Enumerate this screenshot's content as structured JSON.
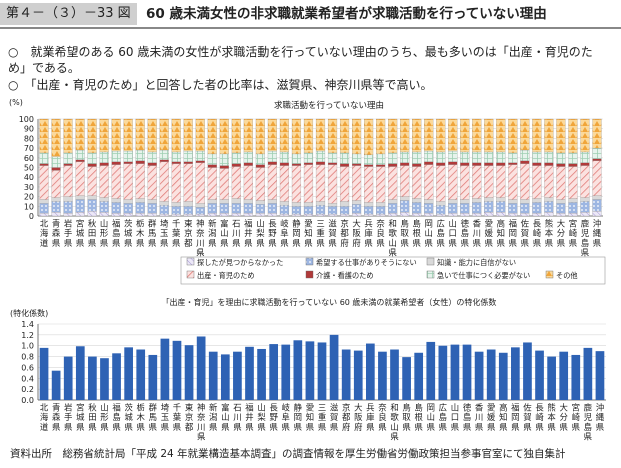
{
  "header": {
    "figure_number": "第４－（３）－33 図",
    "title": "60 歳未満女性の非求職就業希望者が求職活動を行っていない理由"
  },
  "bullets": [
    "○　就業希望のある 60 歳未満の女性が求職活動を行っていない理由のうち、最も多いのは「出産・育児のため」である。",
    "○　「出産・育児のため」と回答した者の比率は、滋賀県、神奈川県等で高い。"
  ],
  "source": "資料出所　総務省統計局「平成 24 年就業構造基本調査」の調査情報を厚生労働省労働政策担当参事官室にて独自集計",
  "chart_data": [
    {
      "type": "bar",
      "title": "求職活動を行っていない理由",
      "ylabel": "(%)",
      "ylim": [
        0,
        100
      ],
      "yticks": [
        0,
        10,
        20,
        30,
        40,
        50,
        60,
        70,
        80,
        90,
        100
      ],
      "stacked": true,
      "categories": [
        "北海道",
        "青森県",
        "岩手県",
        "宮城県",
        "秋田県",
        "山形県",
        "福島県",
        "茨城県",
        "栃木県",
        "群馬県",
        "埼玉県",
        "千葉県",
        "東京都",
        "神奈川県",
        "新潟県",
        "富山県",
        "石川県",
        "福井県",
        "山梨県",
        "長野県",
        "岐阜県",
        "静岡県",
        "愛知県",
        "三重県",
        "滋賀県",
        "京都府",
        "大阪府",
        "兵庫県",
        "奈良県",
        "和歌山県",
        "鳥取県",
        "島根県",
        "岡山県",
        "広島県",
        "山口県",
        "徳島県",
        "香川県",
        "愛媛県",
        "高知県",
        "福岡県",
        "佐賀県",
        "長崎県",
        "熊本県",
        "大分県",
        "宮崎県",
        "鹿児島県",
        "沖縄県"
      ],
      "series": [
        {
          "name": "探したが見つからなかった",
          "color": "#c9c2e6",
          "values": [
            3,
            4,
            3,
            4,
            5,
            4,
            3,
            3,
            3,
            3,
            2,
            2,
            2,
            2,
            3,
            3,
            3,
            3,
            3,
            3,
            2,
            2,
            2,
            2,
            2,
            2,
            3,
            2,
            2,
            3,
            4,
            3,
            3,
            2,
            3,
            3,
            3,
            4,
            4,
            3,
            3,
            3,
            4,
            3,
            3,
            4,
            5
          ]
        },
        {
          "name": "希望する仕事がありそうにない",
          "color": "#6a8fd0",
          "values": [
            10,
            11,
            12,
            13,
            12,
            11,
            11,
            10,
            11,
            10,
            9,
            8,
            8,
            7,
            10,
            10,
            10,
            10,
            9,
            10,
            9,
            8,
            8,
            9,
            8,
            8,
            9,
            8,
            8,
            10,
            12,
            11,
            10,
            9,
            10,
            10,
            11,
            11,
            11,
            10,
            10,
            11,
            11,
            10,
            11,
            11,
            12
          ]
        },
        {
          "name": "知識・能力に自信がない",
          "color": "#dcdcdc",
          "values": [
            4,
            4,
            5,
            4,
            4,
            4,
            4,
            4,
            4,
            4,
            4,
            4,
            5,
            4,
            4,
            4,
            5,
            4,
            4,
            4,
            4,
            4,
            4,
            4,
            3,
            5,
            4,
            4,
            4,
            4,
            4,
            4,
            4,
            4,
            4,
            4,
            4,
            4,
            4,
            4,
            4,
            4,
            4,
            4,
            4,
            4,
            4
          ]
        },
        {
          "name": "出産・育児のため",
          "color": "#f3b7b4",
          "values": [
            35,
            28,
            32,
            35,
            30,
            33,
            35,
            37,
            36,
            35,
            41,
            40,
            39,
            42,
            33,
            32,
            33,
            35,
            34,
            36,
            37,
            38,
            39,
            38,
            40,
            36,
            36,
            37,
            37,
            34,
            32,
            33,
            36,
            37,
            36,
            35,
            34,
            33,
            33,
            36,
            37,
            34,
            33,
            34,
            33,
            33,
            36
          ]
        },
        {
          "name": "介護・看護のため",
          "color": "#b03a3a",
          "values": [
            2,
            3,
            2,
            2,
            3,
            3,
            3,
            2,
            3,
            3,
            2,
            2,
            2,
            2,
            3,
            3,
            3,
            3,
            3,
            3,
            3,
            2,
            2,
            3,
            2,
            3,
            2,
            2,
            2,
            3,
            3,
            3,
            3,
            3,
            3,
            3,
            3,
            3,
            3,
            2,
            3,
            3,
            3,
            3,
            3,
            3,
            2
          ]
        },
        {
          "name": "急いで仕事につく必要がない",
          "color": "#c7e2d2",
          "values": [
            11,
            11,
            11,
            10,
            11,
            11,
            11,
            11,
            11,
            11,
            10,
            10,
            11,
            10,
            11,
            12,
            11,
            11,
            11,
            11,
            11,
            10,
            10,
            11,
            10,
            11,
            10,
            10,
            11,
            11,
            11,
            12,
            11,
            11,
            11,
            11,
            11,
            11,
            11,
            10,
            11,
            11,
            11,
            11,
            11,
            11,
            11
          ]
        },
        {
          "name": "その他",
          "color": "#f5b454",
          "values": [
            35,
            39,
            35,
            32,
            35,
            34,
            33,
            33,
            32,
            34,
            32,
            34,
            33,
            33,
            36,
            36,
            35,
            34,
            36,
            33,
            34,
            36,
            35,
            33,
            35,
            35,
            36,
            37,
            36,
            35,
            34,
            34,
            33,
            34,
            33,
            34,
            34,
            34,
            34,
            35,
            32,
            34,
            34,
            35,
            35,
            34,
            30
          ]
        }
      ]
    },
    {
      "type": "bar",
      "title": "「出産・育児」を理由に求職活動を行っていない 60 歳未満の就業希望者（女性）の特化係数",
      "ylabel": "(特化係数)",
      "ylim": [
        0,
        1.4
      ],
      "yticks": [
        0.0,
        0.2,
        0.4,
        0.6,
        0.8,
        1.0,
        1.2,
        1.4
      ],
      "categories": [
        "北海道",
        "青森県",
        "岩手県",
        "宮城県",
        "秋田県",
        "山形県",
        "福島県",
        "茨城県",
        "栃木県",
        "群馬県",
        "埼玉県",
        "千葉県",
        "東京都",
        "神奈川県",
        "新潟県",
        "富山県",
        "石川県",
        "福井県",
        "山梨県",
        "長野県",
        "岐阜県",
        "静岡県",
        "愛知県",
        "三重県",
        "滋賀県",
        "京都府",
        "大阪府",
        "兵庫県",
        "奈良県",
        "和歌山県",
        "鳥取県",
        "島根県",
        "岡山県",
        "広島県",
        "山口県",
        "徳島県",
        "香川県",
        "愛媛県",
        "高知県",
        "福岡県",
        "佐賀県",
        "長崎県",
        "熊本県",
        "大分県",
        "宮崎県",
        "鹿児島県",
        "沖縄県"
      ],
      "series": [
        {
          "color": "#2e62b4",
          "values": [
            0.96,
            0.54,
            0.8,
            0.99,
            0.8,
            0.77,
            0.86,
            0.97,
            0.93,
            0.83,
            1.13,
            1.09,
            1.01,
            1.17,
            0.89,
            0.84,
            0.89,
            0.98,
            0.94,
            1.03,
            1.02,
            1.1,
            1.08,
            1.06,
            1.2,
            0.93,
            0.91,
            1.04,
            0.89,
            0.93,
            0.79,
            0.87,
            1.07,
            1.0,
            1.02,
            1.02,
            0.89,
            0.93,
            0.87,
            0.97,
            1.06,
            0.91,
            0.8,
            0.89,
            0.83,
            0.96,
            0.9
          ]
        }
      ]
    }
  ]
}
